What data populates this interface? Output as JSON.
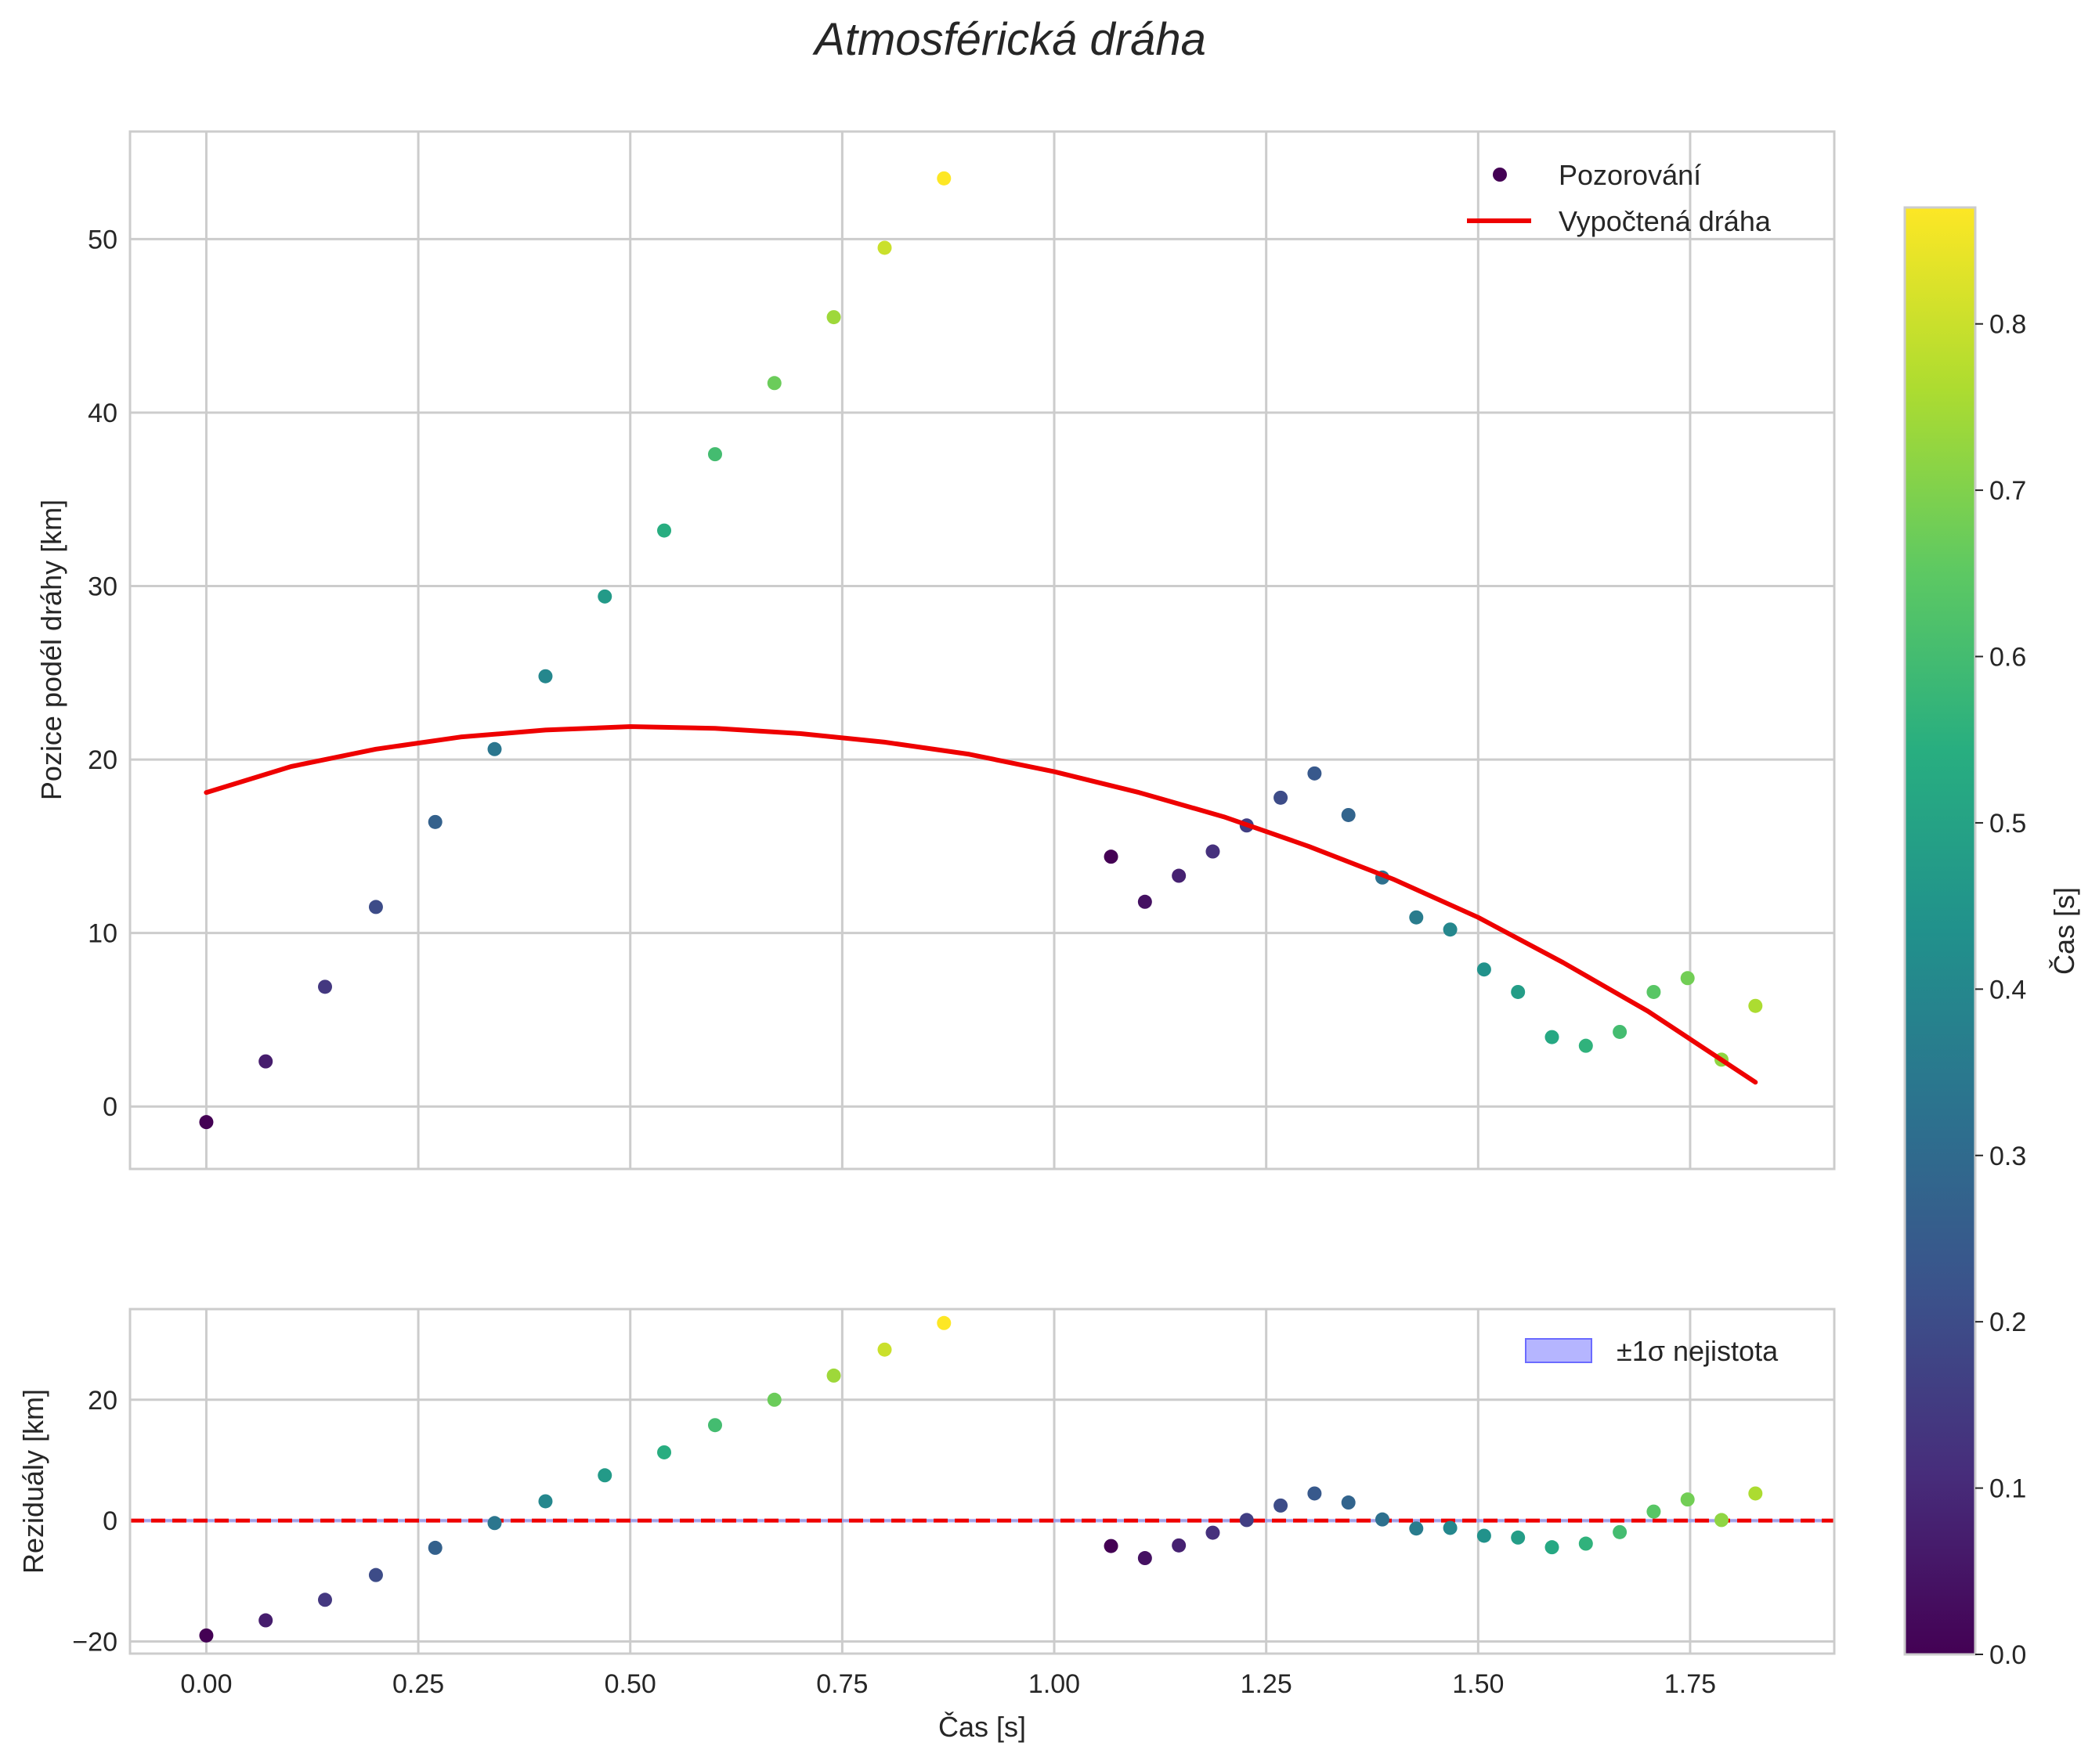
{
  "chart_data": {
    "title": "Atmosférická dráha",
    "xlabel": "Čas [s]",
    "xlim": [
      -0.09,
      1.92
    ],
    "xticks": [
      0.0,
      0.25,
      0.5,
      0.75,
      1.0,
      1.25,
      1.5,
      1.75
    ],
    "xtick_labels": [
      "0.00",
      "0.25",
      "0.50",
      "0.75",
      "1.00",
      "1.25",
      "1.50",
      "1.75"
    ],
    "top": {
      "type": "scatter",
      "ylabel": "Pozice podél dráhy [km]",
      "ylim": [
        -3.6,
        56.2
      ],
      "yticks": [
        0,
        10,
        20,
        30,
        40,
        50
      ],
      "ytick_labels": [
        "0",
        "10",
        "20",
        "30",
        "40",
        "50"
      ],
      "observations": {
        "name": "Pozorování",
        "x": [
          0.0,
          0.07,
          0.14,
          0.2,
          0.27,
          0.34,
          0.4,
          0.47,
          0.54,
          0.6,
          0.67,
          0.74,
          0.8,
          0.87,
          1.067,
          1.107,
          1.147,
          1.187,
          1.227,
          1.267,
          1.307,
          1.347,
          1.387,
          1.427,
          1.467,
          1.507,
          1.547,
          1.587,
          1.627,
          1.667,
          1.707,
          1.747,
          1.787,
          1.827
        ],
        "y": [
          -0.9,
          2.6,
          6.9,
          11.5,
          16.4,
          20.6,
          24.8,
          29.4,
          33.2,
          37.6,
          41.7,
          45.5,
          49.5,
          53.5,
          14.4,
          11.8,
          13.3,
          14.7,
          16.2,
          17.8,
          19.2,
          16.8,
          13.2,
          10.9,
          10.2,
          7.9,
          6.6,
          4.0,
          3.5,
          4.3,
          6.6,
          7.4,
          2.7,
          5.8
        ],
        "c": [
          0.0,
          0.07,
          0.14,
          0.2,
          0.27,
          0.34,
          0.4,
          0.47,
          0.54,
          0.6,
          0.67,
          0.74,
          0.8,
          0.87,
          0.0,
          0.04,
          0.08,
          0.12,
          0.16,
          0.2,
          0.24,
          0.28,
          0.32,
          0.36,
          0.4,
          0.44,
          0.48,
          0.52,
          0.56,
          0.6,
          0.64,
          0.68,
          0.72,
          0.76
        ]
      },
      "fit": {
        "name": "Vypočtená dráha",
        "color": "#ee0000",
        "x": [
          0.0,
          0.1,
          0.2,
          0.3,
          0.4,
          0.5,
          0.6,
          0.7,
          0.8,
          0.9,
          1.0,
          1.1,
          1.2,
          1.3,
          1.4,
          1.5,
          1.6,
          1.7,
          1.827
        ],
        "y": [
          18.1,
          19.6,
          20.6,
          21.3,
          21.7,
          21.9,
          21.8,
          21.5,
          21.0,
          20.3,
          19.3,
          18.1,
          16.7,
          15.0,
          13.1,
          10.9,
          8.3,
          5.5,
          1.4
        ]
      }
    },
    "bottom": {
      "type": "scatter",
      "ylabel": "Reziduály [km]",
      "ylim": [
        -22,
        35
      ],
      "yticks": [
        -20,
        0,
        20
      ],
      "ytick_labels": [
        "−20",
        "0",
        "20"
      ],
      "residuals": {
        "x": [
          0.0,
          0.07,
          0.14,
          0.2,
          0.27,
          0.34,
          0.4,
          0.47,
          0.54,
          0.6,
          0.67,
          0.74,
          0.8,
          0.87,
          1.067,
          1.107,
          1.147,
          1.187,
          1.227,
          1.267,
          1.307,
          1.347,
          1.387,
          1.427,
          1.467,
          1.507,
          1.547,
          1.587,
          1.627,
          1.667,
          1.707,
          1.747,
          1.787,
          1.827
        ],
        "y": [
          -19.0,
          -16.5,
          -13.1,
          -9.0,
          -4.5,
          -0.4,
          3.2,
          7.5,
          11.3,
          15.8,
          20.0,
          24.0,
          28.3,
          32.7,
          -4.2,
          -6.2,
          -4.1,
          -2.0,
          0.1,
          2.5,
          4.5,
          3.0,
          0.2,
          -1.3,
          -1.2,
          -2.5,
          -2.8,
          -4.4,
          -3.8,
          -1.9,
          1.5,
          3.5,
          0.1,
          4.5
        ],
        "c": [
          0.0,
          0.07,
          0.14,
          0.2,
          0.27,
          0.34,
          0.4,
          0.47,
          0.54,
          0.6,
          0.67,
          0.74,
          0.8,
          0.87,
          0.0,
          0.04,
          0.08,
          0.12,
          0.16,
          0.2,
          0.24,
          0.28,
          0.32,
          0.36,
          0.4,
          0.44,
          0.48,
          0.52,
          0.56,
          0.6,
          0.64,
          0.68,
          0.72,
          0.76
        ]
      },
      "zero_line": {
        "y": 0,
        "color": "#ee0000",
        "style": "dashed"
      },
      "band": {
        "name": "±1σ nejistota",
        "color": "#6b6bff",
        "lower": -0.3,
        "upper": 0.3
      }
    },
    "colorbar": {
      "label": "Čas [s]",
      "colormap": "viridis",
      "range": [
        0.0,
        0.87
      ],
      "ticks": [
        0.0,
        0.1,
        0.2,
        0.3,
        0.4,
        0.5,
        0.6,
        0.7,
        0.8
      ],
      "tick_labels": [
        "0.0",
        "0.1",
        "0.2",
        "0.3",
        "0.4",
        "0.5",
        "0.6",
        "0.7",
        "0.8"
      ]
    },
    "legend_placement": "top-right"
  }
}
